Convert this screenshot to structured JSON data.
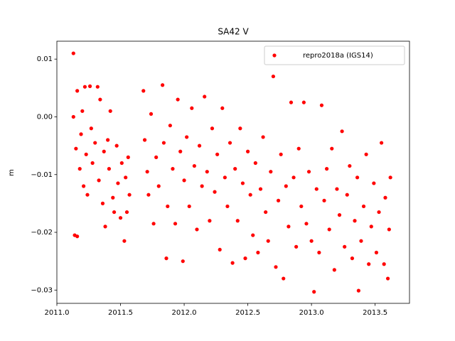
{
  "chart_data": {
    "type": "scatter",
    "title": "SA42 V",
    "y_label": "m",
    "xlim": [
      2011.0,
      2013.77
    ],
    "ylim": [
      -0.0323,
      0.0131
    ],
    "xticks": [
      {
        "value": 2011.0,
        "label": "2011.0"
      },
      {
        "value": 2011.5,
        "label": "2011.5"
      },
      {
        "value": 2012.0,
        "label": "2012.0"
      },
      {
        "value": 2012.5,
        "label": "2012.5"
      },
      {
        "value": 2013.0,
        "label": "2013.0"
      },
      {
        "value": 2013.5,
        "label": "2013.5"
      }
    ],
    "yticks": [
      {
        "value": -0.03,
        "label": "−0.03"
      },
      {
        "value": -0.02,
        "label": "−0.02"
      },
      {
        "value": -0.01,
        "label": "−0.01"
      },
      {
        "value": 0,
        "label": "0.00"
      },
      0.01
    ],
    "grid": false,
    "legend": "upper right",
    "x": [
      2011.13,
      2011.13,
      2011.14,
      2011.15,
      2011.16,
      2011.16,
      2011.18,
      2011.19,
      2011.2,
      2011.21,
      2011.22,
      2011.23,
      2011.24,
      2011.26,
      2011.27,
      2011.28,
      2011.3,
      2011.32,
      2011.33,
      2011.34,
      2011.36,
      2011.37,
      2011.38,
      2011.4,
      2011.41,
      2011.42,
      2011.44,
      2011.45,
      2011.47,
      2011.48,
      2011.5,
      2011.51,
      2011.53,
      2011.54,
      2011.55,
      2011.56,
      2011.57,
      2011.68,
      2011.69,
      2011.71,
      2011.72,
      2011.74,
      2011.76,
      2011.78,
      2011.8,
      2011.83,
      2011.84,
      2011.86,
      2011.87,
      2011.89,
      2011.91,
      2011.93,
      2011.95,
      2011.97,
      2011.99,
      2012.0,
      2012.02,
      2012.04,
      2012.06,
      2012.08,
      2012.1,
      2012.12,
      2012.14,
      2012.16,
      2012.18,
      2012.2,
      2012.22,
      2012.24,
      2012.26,
      2012.28,
      2012.3,
      2012.32,
      2012.34,
      2012.36,
      2012.38,
      2012.4,
      2012.42,
      2012.44,
      2012.46,
      2012.48,
      2012.5,
      2012.52,
      2012.54,
      2012.56,
      2012.58,
      2012.6,
      2012.62,
      2012.64,
      2012.66,
      2012.68,
      2012.7,
      2012.72,
      2012.74,
      2012.76,
      2012.78,
      2012.8,
      2012.82,
      2012.84,
      2012.86,
      2012.88,
      2012.9,
      2012.92,
      2012.94,
      2012.96,
      2012.98,
      2013.0,
      2013.02,
      2013.04,
      2013.06,
      2013.08,
      2013.1,
      2013.12,
      2013.14,
      2013.16,
      2013.18,
      2013.2,
      2013.22,
      2013.24,
      2013.26,
      2013.28,
      2013.3,
      2013.32,
      2013.34,
      2013.36,
      2013.37,
      2013.39,
      2013.41,
      2013.43,
      2013.45,
      2013.47,
      2013.49,
      2013.51,
      2013.53,
      2013.55,
      2013.57,
      2013.58,
      2013.6,
      2013.61,
      2013.62
    ],
    "series": [
      {
        "name": "repro2018a (IGS14)",
        "color": "#ff0000",
        "values": [
          0.011,
          0.0,
          -0.0205,
          -0.0055,
          -0.0207,
          0.0045,
          -0.009,
          -0.003,
          0.001,
          -0.012,
          0.0052,
          -0.0065,
          -0.0135,
          0.0053,
          -0.002,
          -0.008,
          -0.0045,
          0.0052,
          -0.011,
          0.003,
          -0.015,
          -0.006,
          -0.019,
          -0.004,
          -0.009,
          0.001,
          -0.014,
          -0.0165,
          -0.005,
          -0.0115,
          -0.0175,
          -0.008,
          -0.0215,
          -0.0105,
          -0.0165,
          -0.007,
          -0.0135,
          0.0045,
          -0.004,
          -0.0095,
          -0.0135,
          0.0005,
          -0.0185,
          -0.007,
          -0.012,
          0.0055,
          -0.0045,
          -0.0245,
          -0.0155,
          -0.0015,
          -0.009,
          -0.0185,
          0.003,
          -0.006,
          -0.025,
          -0.011,
          -0.0035,
          -0.0155,
          0.0015,
          -0.0085,
          -0.0195,
          -0.005,
          -0.012,
          0.0035,
          -0.0095,
          -0.018,
          -0.002,
          -0.013,
          -0.0065,
          -0.023,
          0.0015,
          -0.0105,
          -0.0155,
          -0.0045,
          -0.0253,
          -0.009,
          -0.018,
          -0.002,
          -0.0115,
          -0.0245,
          -0.006,
          -0.0135,
          -0.0205,
          -0.008,
          -0.0235,
          -0.0125,
          -0.0035,
          -0.0165,
          -0.0215,
          -0.0095,
          0.007,
          -0.026,
          -0.0145,
          -0.0065,
          -0.028,
          -0.012,
          -0.019,
          0.0025,
          -0.0105,
          -0.0225,
          -0.0055,
          -0.0155,
          0.0025,
          -0.0185,
          -0.0095,
          -0.0215,
          -0.0303,
          -0.0125,
          -0.0235,
          0.002,
          -0.0145,
          -0.009,
          -0.0195,
          -0.0055,
          -0.0265,
          -0.0125,
          -0.017,
          -0.0025,
          -0.0225,
          -0.0135,
          -0.0085,
          -0.0245,
          -0.018,
          -0.0105,
          -0.0301,
          -0.0215,
          -0.0155,
          -0.0065,
          -0.0255,
          -0.019,
          -0.0115,
          -0.0235,
          -0.0165,
          -0.0045,
          -0.0255,
          -0.014,
          -0.028,
          -0.0195,
          -0.0105
        ]
      }
    ]
  }
}
